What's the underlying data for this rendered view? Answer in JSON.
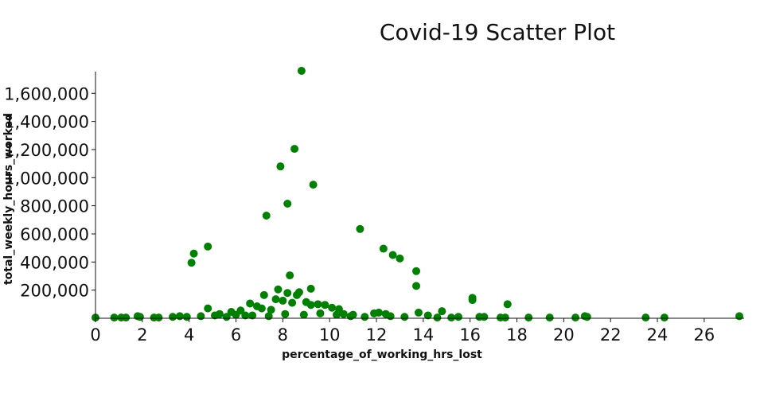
{
  "chart_data": {
    "type": "scatter",
    "title": "Covid-19 Scatter Plot",
    "xlabel": "percentage_of_working_hrs_lost",
    "ylabel": "total_weekly_hours_worked",
    "xlim": [
      0,
      27.5
    ],
    "ylim": [
      0,
      1760000
    ],
    "x_ticks": [
      0,
      2,
      4,
      6,
      8,
      10,
      12,
      14,
      16,
      18,
      20,
      22,
      24,
      26
    ],
    "x_tick_labels": [
      "0",
      "2",
      "4",
      "6",
      "8",
      "10",
      "12",
      "14",
      "16",
      "18",
      "20",
      "22",
      "24",
      "26"
    ],
    "y_ticks": [
      200000,
      400000,
      600000,
      800000,
      1000000,
      1200000,
      1400000,
      1600000
    ],
    "y_tick_labels": [
      "200,000",
      "400,000",
      "600,000",
      "800,000",
      "1,000,000",
      "1,200,000",
      "1,400,000",
      "1,600,000"
    ],
    "grid": false,
    "legend": "none",
    "marker_color": "#008000",
    "series": [
      {
        "x": [
          8.8,
          8.5,
          7.9,
          9.3,
          8.2,
          7.3,
          11.3,
          4.8,
          12.3,
          4.2,
          12.7,
          13.0,
          4.1,
          13.7,
          8.3,
          13.7,
          9.2,
          7.8,
          8.2,
          8.7,
          7.2,
          8.6,
          7.7,
          8.0,
          8.4,
          9.0,
          9.2,
          9.5,
          9.8,
          10.1,
          10.4,
          6.6,
          6.9,
          7.1,
          7.5,
          6.2,
          5.8,
          4.8,
          16.1,
          16.1,
          17.6,
          14.8,
          13.8,
          12.1,
          12.4,
          11.9,
          10.6,
          11.0,
          5.3,
          6.0,
          6.4,
          14.2,
          15.5,
          16.6,
          18.5,
          19.4,
          20.5,
          20.9,
          21.0,
          23.5,
          24.3,
          27.5,
          0.0,
          0.8,
          1.1,
          1.3,
          1.8,
          1.9,
          2.5,
          2.7,
          3.3,
          3.6,
          3.9,
          4.5,
          5.1,
          5.6,
          6.7,
          7.4,
          8.1,
          8.9,
          9.6,
          10.3,
          10.9,
          11.5,
          12.6,
          13.2,
          14.6,
          15.2,
          16.4,
          17.3,
          17.5
        ],
        "y": [
          1760000,
          1205000,
          1080000,
          950000,
          815000,
          730000,
          635000,
          510000,
          495000,
          460000,
          450000,
          425000,
          395000,
          335000,
          305000,
          230000,
          210000,
          205000,
          180000,
          185000,
          165000,
          165000,
          135000,
          125000,
          110000,
          115000,
          95000,
          100000,
          95000,
          75000,
          65000,
          105000,
          85000,
          70000,
          60000,
          55000,
          45000,
          70000,
          145000,
          130000,
          100000,
          50000,
          40000,
          40000,
          30000,
          35000,
          30000,
          25000,
          30000,
          25000,
          20000,
          20000,
          10000,
          10000,
          5000,
          5000,
          5000,
          15000,
          10000,
          5000,
          5000,
          15000,
          5000,
          5000,
          5000,
          5000,
          15000,
          10000,
          5000,
          5000,
          10000,
          15000,
          10000,
          15000,
          20000,
          10000,
          20000,
          15000,
          30000,
          25000,
          35000,
          25000,
          15000,
          10000,
          15000,
          10000,
          5000,
          5000,
          10000,
          5000,
          5000
        ]
      }
    ]
  }
}
